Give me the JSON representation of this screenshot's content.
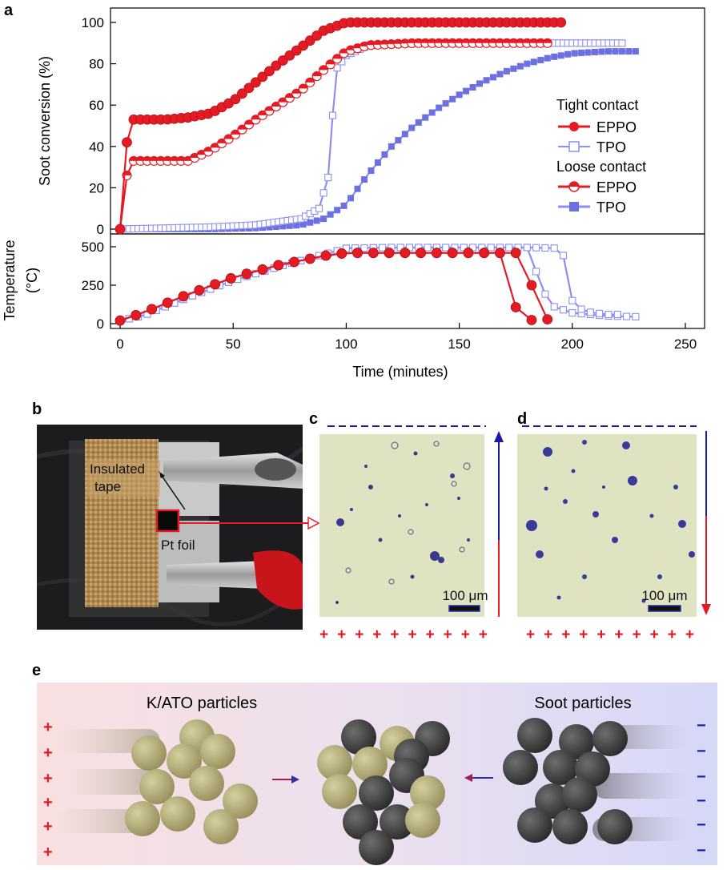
{
  "panels": {
    "a": "a",
    "b": "b",
    "c": "c",
    "d": "d",
    "e": "e"
  },
  "chart_data": [
    {
      "type": "line",
      "panel": "a (upper)",
      "ylabel": "Soot conversion (%)",
      "xlim": [
        0,
        250
      ],
      "ylim": [
        0,
        100
      ],
      "yticks": [
        0,
        20,
        40,
        60,
        80,
        100
      ],
      "legend": {
        "placement": "right",
        "group_titles": [
          "Tight contact",
          "Loose contact"
        ]
      },
      "series": [
        {
          "name": "EPPO",
          "group": "Tight contact",
          "color": "#e51b24",
          "marker": "filled-sphere",
          "x": [
            0,
            3,
            5,
            10,
            20,
            30,
            40,
            50,
            60,
            70,
            80,
            90,
            100,
            110,
            120,
            150,
            180,
            195
          ],
          "y": [
            0,
            42,
            53,
            53,
            53,
            54,
            56,
            62,
            71,
            80,
            88,
            96,
            100,
            100,
            100,
            100,
            100,
            100
          ]
        },
        {
          "name": "TPO",
          "group": "Tight contact",
          "color": "#8c8ff0",
          "marker": "open-square",
          "x": [
            0,
            20,
            40,
            60,
            80,
            88,
            92,
            94,
            96,
            100,
            110,
            130,
            160,
            190,
            200,
            222
          ],
          "y": [
            0,
            0.5,
            1,
            2,
            5,
            10,
            25,
            55,
            78,
            84,
            89,
            90,
            90,
            90,
            90,
            90
          ]
        },
        {
          "name": "EPPO",
          "group": "Loose contact",
          "color": "#e51b24",
          "marker": "half-filled-sphere",
          "x": [
            0,
            2,
            4,
            6,
            20,
            30,
            40,
            50,
            60,
            70,
            80,
            90,
            100,
            110,
            130,
            160,
            190
          ],
          "y": [
            0,
            20,
            32,
            33,
            33,
            33,
            38,
            45,
            53,
            60,
            67,
            77,
            86,
            89,
            90,
            90,
            90
          ]
        },
        {
          "name": "TPO",
          "group": "Loose contact",
          "color": "#8c8ff0",
          "marker": "filled-square",
          "x": [
            0,
            40,
            60,
            80,
            90,
            100,
            110,
            120,
            130,
            140,
            150,
            160,
            170,
            180,
            190,
            200,
            215,
            228
          ],
          "y": [
            0,
            0,
            0.5,
            2,
            5,
            12,
            27,
            40,
            50,
            58,
            65,
            71,
            76,
            80,
            83,
            85,
            86,
            86
          ]
        }
      ]
    },
    {
      "type": "line",
      "panel": "a (lower)",
      "ylabel_line1": "Temperature",
      "ylabel_line2": "(°C)",
      "xlabel": "Time (minutes)",
      "xlim": [
        0,
        250
      ],
      "ylim": [
        0,
        500
      ],
      "xticks": [
        0,
        50,
        100,
        150,
        200,
        250
      ],
      "yticks": [
        0,
        250,
        500
      ],
      "series": [
        {
          "name": "EPPO",
          "group": "Tight contact",
          "color": "#e51b24",
          "x": [
            0,
            10,
            30,
            50,
            70,
            90,
            100,
            110,
            130,
            150,
            170,
            180,
            182,
            185,
            190
          ],
          "y": [
            20,
            70,
            190,
            300,
            380,
            440,
            460,
            460,
            460,
            460,
            460,
            460,
            250,
            60,
            20
          ]
        },
        {
          "name": "TPO",
          "group": "Tight contact",
          "color": "#8c8ff0",
          "x": [
            0,
            10,
            30,
            50,
            70,
            90,
            100,
            120,
            150,
            180,
            195,
            198,
            200,
            205,
            215,
            222
          ],
          "y": [
            20,
            50,
            170,
            280,
            370,
            450,
            490,
            495,
            495,
            495,
            490,
            350,
            150,
            80,
            60,
            60
          ]
        },
        {
          "name": "EPPO",
          "group": "Loose contact",
          "color": "#e51b24",
          "x": [
            0,
            10,
            30,
            50,
            70,
            90,
            100,
            120,
            150,
            170,
            173,
            176,
            180,
            186
          ],
          "y": [
            20,
            70,
            190,
            300,
            380,
            440,
            460,
            460,
            460,
            460,
            200,
            60,
            25,
            20
          ]
        },
        {
          "name": "TPO",
          "group": "Loose contact",
          "color": "#8c8ff0",
          "x": [
            0,
            10,
            30,
            50,
            70,
            90,
            100,
            120,
            150,
            180,
            185,
            190,
            200,
            215,
            228
          ],
          "y": [
            20,
            50,
            170,
            280,
            370,
            450,
            490,
            495,
            495,
            495,
            300,
            120,
            70,
            50,
            45
          ]
        }
      ]
    }
  ],
  "panel_b": {
    "label_tape_line1": "Insulated",
    "label_tape_line2": "tape",
    "label_foil": "Pt  foil"
  },
  "panel_c": {
    "scale_label": "100 μm",
    "bottom_signs": [
      "+",
      "+",
      "+",
      "+",
      "+",
      "+",
      "+",
      "+",
      "+",
      "+"
    ],
    "arrow_direction": "up"
  },
  "panel_d": {
    "scale_label": "100 μm",
    "bottom_signs": [
      "+",
      "+",
      "+",
      "+",
      "+",
      "+",
      "+",
      "+",
      "+",
      "+"
    ],
    "arrow_direction": "down"
  },
  "panel_e": {
    "left_title": "K/ATO particles",
    "right_title": "Soot particles",
    "left_signs": [
      "+",
      "+",
      "+",
      "+",
      "+",
      "+"
    ],
    "right_signs": [
      "−",
      "−",
      "−",
      "−",
      "−",
      "−"
    ],
    "colors": {
      "kato": "#b8b07a",
      "soot": "#4a4a4a",
      "left_bg": "#f6dede",
      "right_bg": "#d8d8f6"
    }
  }
}
